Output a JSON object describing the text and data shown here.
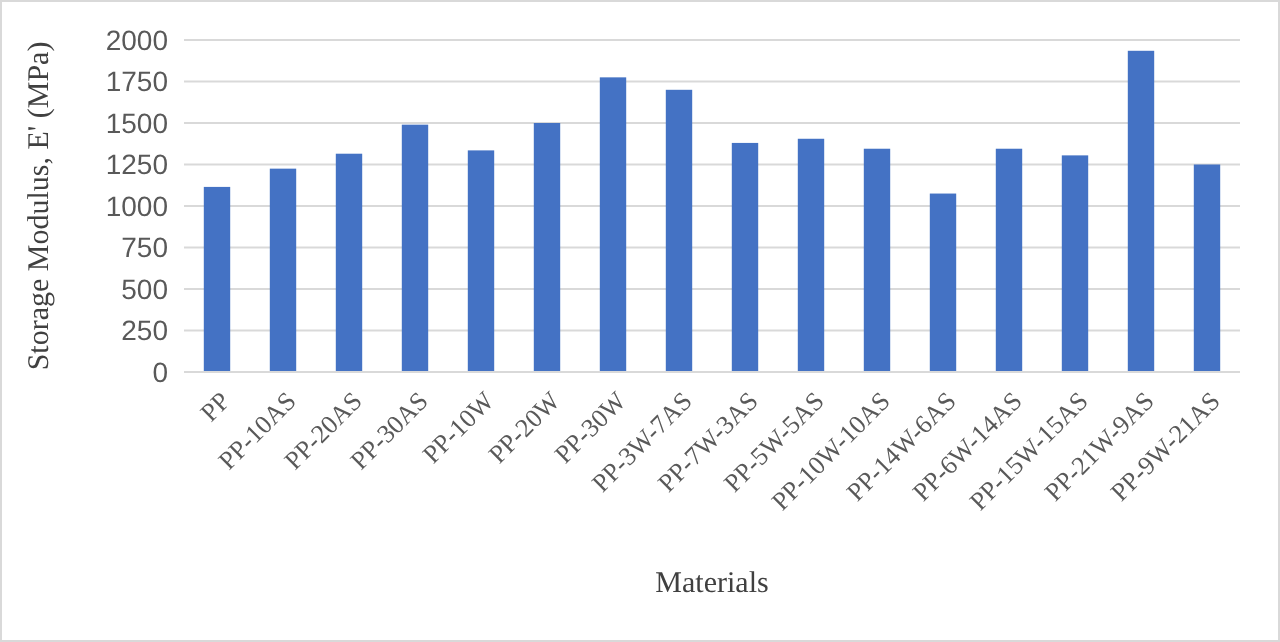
{
  "chart_data": {
    "type": "bar",
    "xlabel": "Materials",
    "ylabel": "Storage Modulus, E' (MPa)",
    "categories": [
      "PP",
      "PP-10AS",
      "PP-20AS",
      "PP-30AS",
      "PP-10W",
      "PP-20W",
      "PP-30W",
      "PP-3W-7AS",
      "PP-7W-3AS",
      "PP-5W-5AS",
      "PP-10W-10AS",
      "PP-14W-6AS",
      "PP-6W-14AS",
      "PP-15W-15AS",
      "PP-21W-9AS",
      "PP-9W-21AS"
    ],
    "values": [
      1115,
      1225,
      1315,
      1490,
      1335,
      1500,
      1775,
      1700,
      1380,
      1405,
      1345,
      1075,
      1345,
      1305,
      1935,
      1250
    ],
    "color": "#4472c4",
    "ylim": [
      0,
      2000
    ],
    "yticks": [
      0,
      250,
      500,
      750,
      1000,
      1250,
      1500,
      1750,
      2000
    ],
    "grid": "y"
  }
}
